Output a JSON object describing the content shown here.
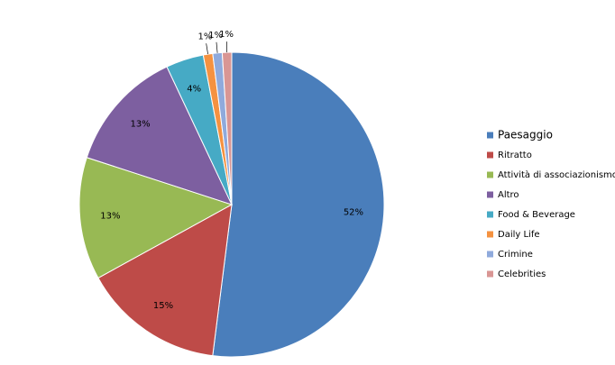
{
  "chart_data": {
    "type": "pie",
    "categories": [
      "Paesaggio",
      "Ritratto",
      "Attività di associazionismo",
      "Altro",
      "Food & Beverage",
      "Daily Life",
      "Crimine",
      "Celebrities"
    ],
    "values": [
      52,
      15,
      13,
      13,
      4,
      1,
      1,
      1
    ],
    "value_labels": [
      "52%",
      "15%",
      "13%",
      "13%",
      "4%",
      "1%",
      "1%",
      "1%"
    ],
    "colors": [
      "#4a7ebb",
      "#be4b48",
      "#98b954",
      "#7d5fa0",
      "#46aac5",
      "#f59240",
      "#8faadc",
      "#d99694"
    ],
    "legend": "right"
  }
}
